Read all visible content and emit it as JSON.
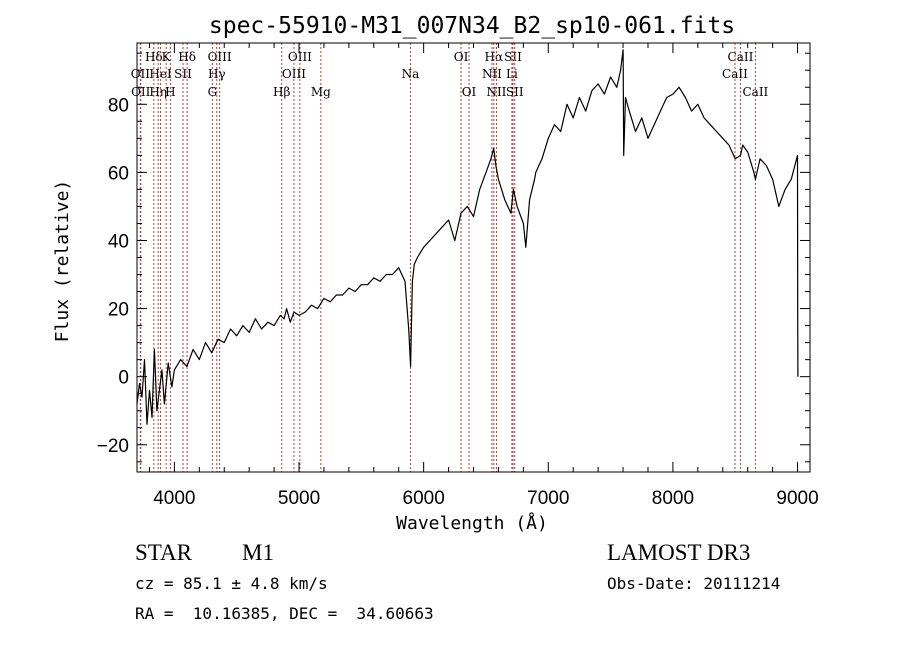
{
  "chart_data": {
    "type": "line",
    "title": "spec-55910-M31_007N34_B2_sp10-061.fits",
    "xlabel": "Wavelength (Å)",
    "ylabel": "Flux (relative)",
    "xlim": [
      3700,
      9100
    ],
    "ylim": [
      -28,
      98
    ],
    "xticks": [
      4000,
      5000,
      6000,
      7000,
      8000,
      9000
    ],
    "xtick_labels": [
      "4000",
      "5000",
      "6000",
      "7000",
      "8000",
      "9000"
    ],
    "yticks": [
      -20,
      0,
      20,
      40,
      60,
      80
    ],
    "ytick_labels": [
      "−20",
      "0",
      "20",
      "40",
      "60",
      "80"
    ],
    "line_color": "#000000",
    "marker_color": "#c0392b",
    "series": [
      {
        "name": "flux",
        "x": [
          3700,
          3720,
          3740,
          3760,
          3780,
          3800,
          3820,
          3840,
          3860,
          3880,
          3900,
          3920,
          3950,
          3980,
          4000,
          4050,
          4100,
          4150,
          4200,
          4250,
          4300,
          4350,
          4400,
          4450,
          4500,
          4550,
          4600,
          4650,
          4700,
          4750,
          4800,
          4850,
          4880,
          4900,
          4930,
          4960,
          5000,
          5050,
          5100,
          5150,
          5200,
          5250,
          5300,
          5350,
          5400,
          5450,
          5500,
          5550,
          5600,
          5650,
          5700,
          5750,
          5800,
          5850,
          5880,
          5895,
          5900,
          5910,
          5925,
          5950,
          6000,
          6050,
          6100,
          6150,
          6200,
          6250,
          6300,
          6350,
          6400,
          6450,
          6500,
          6540,
          6562,
          6580,
          6600,
          6650,
          6700,
          6720,
          6750,
          6800,
          6820,
          6850,
          6870,
          6890,
          6900,
          6950,
          7000,
          7050,
          7100,
          7150,
          7200,
          7250,
          7300,
          7350,
          7400,
          7450,
          7500,
          7550,
          7580,
          7600,
          7605,
          7620,
          7650,
          7700,
          7750,
          7800,
          7850,
          7900,
          7950,
          8000,
          8050,
          8100,
          8150,
          8200,
          8250,
          8300,
          8350,
          8400,
          8450,
          8500,
          8542,
          8560,
          8600,
          8650,
          8662,
          8700,
          8750,
          8800,
          8850,
          8900,
          8950,
          9000,
          9001,
          9003
        ],
        "y": [
          -8,
          -2,
          -6,
          5,
          -14,
          -4,
          -12,
          8,
          -10,
          -4,
          2,
          -8,
          4,
          -3,
          2,
          5,
          3,
          8,
          5,
          10,
          7,
          11,
          10,
          14,
          12,
          15,
          13,
          17,
          14,
          16,
          15,
          18,
          17,
          20,
          16,
          19,
          18,
          19,
          21,
          20,
          23,
          22,
          24,
          24,
          26,
          25,
          27,
          27,
          29,
          28,
          30,
          30,
          32,
          28,
          14,
          3,
          12,
          28,
          33,
          35,
          38,
          40,
          42,
          44,
          46,
          40,
          48,
          50,
          47,
          55,
          60,
          64,
          67,
          62,
          58,
          52,
          48,
          55,
          50,
          45,
          38,
          52,
          55,
          58,
          60,
          64,
          70,
          74,
          72,
          80,
          76,
          82,
          78,
          84,
          86,
          83,
          88,
          85,
          90,
          96,
          65,
          82,
          78,
          72,
          76,
          70,
          74,
          78,
          82,
          83,
          85,
          82,
          78,
          80,
          76,
          74,
          72,
          70,
          68,
          64,
          65,
          68,
          66,
          60,
          58,
          64,
          62,
          58,
          50,
          55,
          58,
          65,
          20,
          0
        ]
      }
    ],
    "markers": [
      {
        "name": "Hδ",
        "x": 3835,
        "row": 0
      },
      {
        "name": "OII",
        "x": 3727,
        "row": 1
      },
      {
        "name": "OII",
        "x": 3730,
        "row": 2
      },
      {
        "name": "K",
        "x": 3934,
        "row": 0
      },
      {
        "name": "HeI",
        "x": 3889,
        "row": 1
      },
      {
        "name": "Hη",
        "x": 3870,
        "row": 2
      },
      {
        "name": "H",
        "x": 3968,
        "row": 2
      },
      {
        "name": "Hδ",
        "x": 4102,
        "row": 0
      },
      {
        "name": "SII",
        "x": 4069,
        "row": 1
      },
      {
        "name": "OIII",
        "x": 4363,
        "row": 0
      },
      {
        "name": "Hγ",
        "x": 4340,
        "row": 1
      },
      {
        "name": "G",
        "x": 4305,
        "row": 2
      },
      {
        "name": "Hβ",
        "x": 4861,
        "row": 2
      },
      {
        "name": "OIII",
        "x": 5007,
        "row": 0
      },
      {
        "name": "OIII",
        "x": 4959,
        "row": 1
      },
      {
        "name": "Mg",
        "x": 5175,
        "row": 2
      },
      {
        "name": "Na",
        "x": 5894,
        "row": 1
      },
      {
        "name": "OI",
        "x": 6300,
        "row": 0
      },
      {
        "name": "OI",
        "x": 6364,
        "row": 2
      },
      {
        "name": "Hα",
        "x": 6563,
        "row": 0
      },
      {
        "name": "NII",
        "x": 6548,
        "row": 1
      },
      {
        "name": "NII",
        "x": 6584,
        "row": 2
      },
      {
        "name": "SII",
        "x": 6717,
        "row": 0
      },
      {
        "name": "Li",
        "x": 6708,
        "row": 1
      },
      {
        "name": "SII",
        "x": 6731,
        "row": 2
      },
      {
        "name": "CaII",
        "x": 8542,
        "row": 0
      },
      {
        "name": "CaII",
        "x": 8498,
        "row": 1
      },
      {
        "name": "CaII",
        "x": 8662,
        "row": 2
      }
    ]
  },
  "info": {
    "object_class": "STAR",
    "subclass": "M1",
    "survey": "LAMOST DR3",
    "redshift": "cz = 85.1 ± 4.8 km/s",
    "obs_date": "Obs-Date: 20111214",
    "coords": "RA =  10.16385, DEC =  34.60663"
  }
}
